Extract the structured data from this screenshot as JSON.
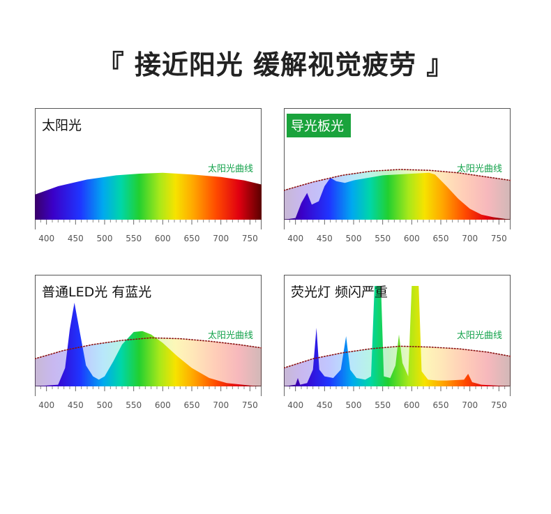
{
  "page": {
    "headline": "『 接近阳光 缓解视觉疲劳 』",
    "accent_green": "#1aa33c",
    "curve_label_color": "#12a14a",
    "sun_dots_color": "#8a1010"
  },
  "chart_data": [
    {
      "type": "area",
      "title": "太阳光",
      "title_style": "plain",
      "annotation": "太阳光曲线",
      "xlim": [
        380,
        770
      ],
      "xticks": [
        400,
        450,
        500,
        550,
        600,
        650,
        700,
        750
      ],
      "xtick_labels": [
        "400",
        "450",
        "500",
        "550",
        "600",
        "650",
        "700",
        "750"
      ],
      "ylim": [
        0,
        1
      ],
      "sun_reference_dotted": false,
      "spectrum_fill": "rainbow",
      "series": [
        {
          "values": [
            [
              380,
              0.3
            ],
            [
              420,
              0.4
            ],
            [
              470,
              0.48
            ],
            [
              520,
              0.53
            ],
            [
              560,
              0.55
            ],
            [
              600,
              0.56
            ],
            [
              650,
              0.54
            ],
            [
              700,
              0.51
            ],
            [
              740,
              0.47
            ],
            [
              770,
              0.42
            ]
          ]
        }
      ]
    },
    {
      "type": "area",
      "title": "导光板光",
      "title_style": "badge",
      "annotation": "太阳光曲线",
      "xlim": [
        380,
        770
      ],
      "xticks": [
        400,
        450,
        500,
        550,
        600,
        650,
        700,
        750
      ],
      "xtick_labels": [
        "400",
        "450",
        "500",
        "550",
        "600",
        "650",
        "700",
        "750"
      ],
      "ylim": [
        0,
        1
      ],
      "sun_reference_dotted": true,
      "sun_reference": [
        [
          380,
          0.35
        ],
        [
          430,
          0.45
        ],
        [
          480,
          0.53
        ],
        [
          530,
          0.58
        ],
        [
          580,
          0.6
        ],
        [
          630,
          0.59
        ],
        [
          680,
          0.56
        ],
        [
          730,
          0.51
        ],
        [
          770,
          0.47
        ]
      ],
      "spectrum_fill": "rainbow",
      "series": [
        {
          "values": [
            [
              380,
              0.0
            ],
            [
              400,
              0.02
            ],
            [
              410,
              0.2
            ],
            [
              420,
              0.32
            ],
            [
              428,
              0.18
            ],
            [
              440,
              0.22
            ],
            [
              450,
              0.4
            ],
            [
              460,
              0.5
            ],
            [
              470,
              0.46
            ],
            [
              485,
              0.44
            ],
            [
              500,
              0.47
            ],
            [
              550,
              0.53
            ],
            [
              600,
              0.55
            ],
            [
              630,
              0.56
            ],
            [
              640,
              0.54
            ],
            [
              660,
              0.4
            ],
            [
              680,
              0.25
            ],
            [
              700,
              0.13
            ],
            [
              720,
              0.06
            ],
            [
              740,
              0.03
            ],
            [
              770,
              0.0
            ]
          ]
        }
      ]
    },
    {
      "type": "area",
      "title": "普通LED光 有蓝光",
      "title_style": "plain",
      "annotation": "太阳光曲线",
      "xlim": [
        380,
        770
      ],
      "xticks": [
        400,
        450,
        500,
        550,
        600,
        650,
        700,
        750
      ],
      "xtick_labels": [
        "400",
        "450",
        "500",
        "550",
        "600",
        "650",
        "700",
        "750"
      ],
      "ylim": [
        0,
        1
      ],
      "sun_reference_dotted": true,
      "sun_reference": [
        [
          380,
          0.33
        ],
        [
          430,
          0.43
        ],
        [
          480,
          0.5
        ],
        [
          530,
          0.55
        ],
        [
          580,
          0.58
        ],
        [
          630,
          0.57
        ],
        [
          680,
          0.54
        ],
        [
          730,
          0.5
        ],
        [
          770,
          0.46
        ]
      ],
      "spectrum_fill": "rainbow",
      "series": [
        {
          "values": [
            [
              380,
              0.0
            ],
            [
              420,
              0.02
            ],
            [
              432,
              0.22
            ],
            [
              440,
              0.68
            ],
            [
              448,
              1.0
            ],
            [
              456,
              0.7
            ],
            [
              468,
              0.25
            ],
            [
              480,
              0.12
            ],
            [
              490,
              0.08
            ],
            [
              500,
              0.12
            ],
            [
              515,
              0.3
            ],
            [
              530,
              0.5
            ],
            [
              550,
              0.65
            ],
            [
              565,
              0.66
            ],
            [
              580,
              0.62
            ],
            [
              600,
              0.52
            ],
            [
              625,
              0.36
            ],
            [
              650,
              0.22
            ],
            [
              680,
              0.1
            ],
            [
              710,
              0.04
            ],
            [
              750,
              0.01
            ],
            [
              770,
              0.0
            ]
          ]
        }
      ]
    },
    {
      "type": "area",
      "title": "荧光灯 频闪严重",
      "title_style": "plain",
      "annotation": "太阳光曲线",
      "xlim": [
        380,
        770
      ],
      "xticks": [
        400,
        450,
        500,
        550,
        600,
        650,
        700,
        750
      ],
      "xtick_labels": [
        "400",
        "450",
        "500",
        "550",
        "600",
        "650",
        "700",
        "750"
      ],
      "ylim": [
        0,
        1
      ],
      "sun_reference_dotted": true,
      "sun_reference": [
        [
          380,
          0.22
        ],
        [
          430,
          0.33
        ],
        [
          480,
          0.4
        ],
        [
          530,
          0.45
        ],
        [
          580,
          0.48
        ],
        [
          630,
          0.47
        ],
        [
          680,
          0.45
        ],
        [
          730,
          0.41
        ],
        [
          770,
          0.36
        ]
      ],
      "spectrum_fill": "rainbow",
      "series": [
        {
          "values": [
            [
              380,
              0.0
            ],
            [
              400,
              0.02
            ],
            [
              404,
              0.1
            ],
            [
              408,
              0.02
            ],
            [
              420,
              0.04
            ],
            [
              430,
              0.2
            ],
            [
              436,
              0.7
            ],
            [
              441,
              0.2
            ],
            [
              450,
              0.12
            ],
            [
              465,
              0.1
            ],
            [
              478,
              0.2
            ],
            [
              487,
              0.6
            ],
            [
              494,
              0.2
            ],
            [
              505,
              0.1
            ],
            [
              520,
              0.08
            ],
            [
              530,
              0.12
            ],
            [
              536,
              1.2
            ],
            [
              547,
              1.2
            ],
            [
              552,
              0.12
            ],
            [
              563,
              0.1
            ],
            [
              572,
              0.25
            ],
            [
              578,
              0.62
            ],
            [
              584,
              0.28
            ],
            [
              594,
              0.12
            ],
            [
              600,
              1.2
            ],
            [
              612,
              1.2
            ],
            [
              617,
              0.18
            ],
            [
              628,
              0.08
            ],
            [
              645,
              0.07
            ],
            [
              660,
              0.07
            ],
            [
              690,
              0.08
            ],
            [
              697,
              0.15
            ],
            [
              704,
              0.05
            ],
            [
              720,
              0.02
            ],
            [
              770,
              0.0
            ]
          ]
        }
      ]
    }
  ]
}
